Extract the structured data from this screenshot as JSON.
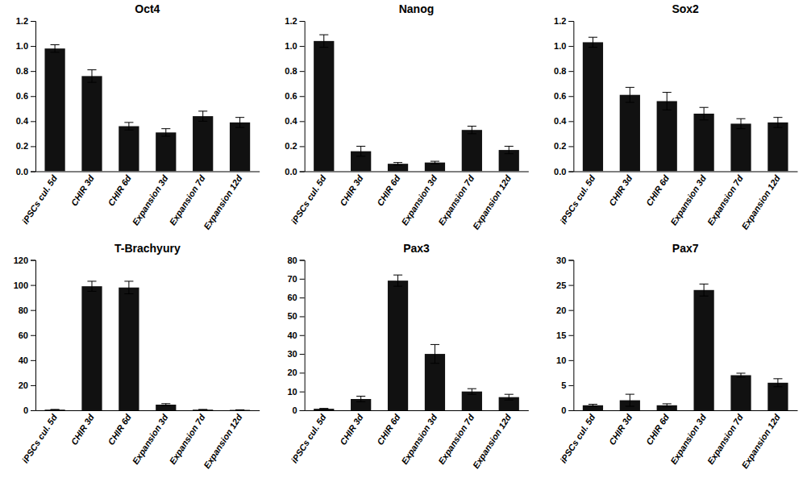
{
  "chart_data": [
    {
      "type": "bar",
      "title": "Oct4",
      "categories": [
        "iPSCs cul. 5d",
        "CHIR 3d",
        "CHIR 6d",
        "Expansion 3d",
        "Expansion 7d",
        "Expansion 12d"
      ],
      "values": [
        0.98,
        0.76,
        0.36,
        0.31,
        0.44,
        0.39
      ],
      "errors": [
        0.03,
        0.05,
        0.03,
        0.03,
        0.04,
        0.04
      ],
      "color": "#111111",
      "ylim": [
        0,
        1.2
      ],
      "yticks": [
        {
          "value": 0,
          "label": "0.0"
        },
        0.2,
        0.4,
        0.6,
        0.8,
        {
          "value": 1.0,
          "label": "1.0"
        },
        1.2
      ],
      "grid": false
    },
    {
      "type": "bar",
      "title": "Nanog",
      "categories": [
        "iPSCs cul. 5d",
        "CHIR 3d",
        "CHIR 6d",
        "Expansion 3d",
        "Expansion 7d",
        "Expansion 12d"
      ],
      "values": [
        1.04,
        0.16,
        0.06,
        0.07,
        0.33,
        0.17
      ],
      "errors": [
        0.05,
        0.04,
        0.01,
        0.01,
        0.03,
        0.03
      ],
      "color": "#111111",
      "ylim": [
        0,
        1.2
      ],
      "yticks": [
        {
          "value": 0,
          "label": "0.0"
        },
        0.2,
        0.4,
        0.6,
        0.8,
        {
          "value": 1.0,
          "label": "1.0"
        },
        1.2
      ],
      "grid": false
    },
    {
      "type": "bar",
      "title": "Sox2",
      "categories": [
        "iPSCs cul. 5d",
        "CHIR 3d",
        "CHIR 6d",
        "Expansion 3d",
        "Expansion 7d",
        "Expansion 12d"
      ],
      "values": [
        1.03,
        0.61,
        0.56,
        0.46,
        0.38,
        0.39
      ],
      "errors": [
        0.04,
        0.06,
        0.07,
        0.05,
        0.04,
        0.04
      ],
      "color": "#111111",
      "ylim": [
        0,
        1.2
      ],
      "yticks": [
        {
          "value": 0,
          "label": "0.0"
        },
        0.2,
        0.4,
        0.6,
        0.8,
        {
          "value": 1.0,
          "label": "1.0"
        },
        1.2
      ],
      "grid": false
    },
    {
      "type": "bar",
      "title": "T-Brachyury",
      "categories": [
        "iPSCs cul. 5d",
        "CHIR 3d",
        "CHIR 6d",
        "Expansion 3d",
        "Expansion 7d",
        "Expansion 12d"
      ],
      "values": [
        0.5,
        99.0,
        98.0,
        4.5,
        0.5,
        0.3
      ],
      "errors": [
        0.2,
        4.0,
        5.0,
        0.8,
        0.2,
        0.1
      ],
      "color": "#111111",
      "ylim": [
        0,
        120
      ],
      "yticks": [
        0,
        20,
        40,
        60,
        80,
        100,
        120
      ],
      "grid": false
    },
    {
      "type": "bar",
      "title": "Pax3",
      "categories": [
        "iPSCs cul. 5d",
        "CHIR 3d",
        "CHIR 6d",
        "Expansion 3d",
        "Expansion 7d",
        "Expansion 12d"
      ],
      "values": [
        0.8,
        6.0,
        69.0,
        30.0,
        10.0,
        7.0
      ],
      "errors": [
        0.2,
        1.5,
        3.0,
        5.0,
        1.5,
        1.5
      ],
      "color": "#111111",
      "ylim": [
        0,
        80
      ],
      "yticks": [
        0,
        10,
        20,
        30,
        40,
        50,
        60,
        70,
        80
      ],
      "grid": false
    },
    {
      "type": "bar",
      "title": "Pax7",
      "categories": [
        "iPSCs cul. 5d",
        "CHIR 3d",
        "CHIR 6d",
        "Expansion 3d",
        "Expansion 7d",
        "Expansion 12d"
      ],
      "values": [
        1.0,
        2.0,
        1.0,
        24.0,
        7.0,
        5.5
      ],
      "errors": [
        0.2,
        1.2,
        0.3,
        1.2,
        0.4,
        0.8
      ],
      "color": "#111111",
      "ylim": [
        0,
        30
      ],
      "yticks": [
        0,
        5,
        10,
        15,
        20,
        25,
        30
      ],
      "grid": false
    }
  ]
}
